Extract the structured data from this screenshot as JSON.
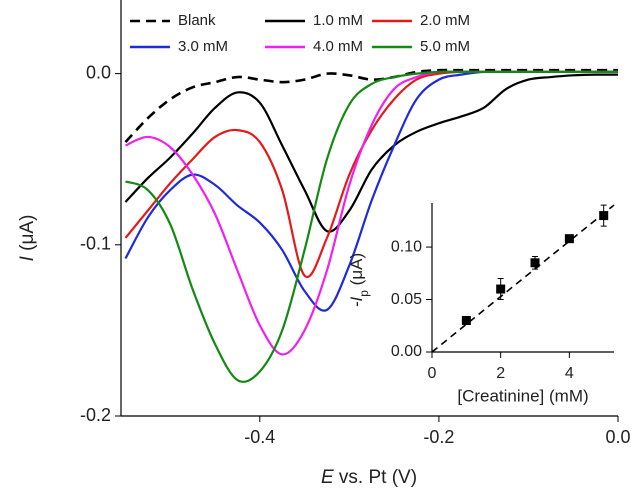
{
  "chart_data": [
    {
      "type": "line",
      "x_label": [
        "E",
        " vs. Pt (V)"
      ],
      "y_label": [
        "I",
        " (μA)"
      ],
      "x": [
        -0.55,
        -0.525,
        -0.5,
        -0.475,
        -0.45,
        -0.425,
        -0.4,
        -0.375,
        -0.35,
        -0.325,
        -0.3,
        -0.275,
        -0.25,
        -0.225,
        -0.2,
        -0.175,
        -0.15,
        -0.125,
        -0.1,
        -0.075,
        -0.05,
        -0.025,
        0.0
      ],
      "xlim": [
        -0.555,
        0.0
      ],
      "ylim": [
        -0.2,
        0.043
      ],
      "xticks": [
        -0.4,
        -0.2,
        {
          "value": 0,
          "label": "0.0"
        }
      ],
      "yticks": [
        {
          "value": 0,
          "label": "0.0"
        },
        -0.1,
        -0.2
      ],
      "series": [
        {
          "name": "Blank",
          "color": "#000000",
          "dash": true,
          "values": [
            -0.04,
            -0.026,
            -0.015,
            -0.008,
            -0.005,
            -0.002,
            -0.0035,
            -0.005,
            -0.0035,
            0,
            -0.001,
            -0.0035,
            -0.002,
            0.001,
            0.002,
            0.002,
            0.002,
            0.002,
            0.002,
            0.002,
            0.002,
            0.002,
            0.002
          ]
        },
        {
          "name": "1.0 mM",
          "color": "#000000",
          "values": [
            -0.075,
            -0.061,
            -0.049,
            -0.035,
            -0.02,
            -0.011,
            -0.017,
            -0.042,
            -0.068,
            -0.092,
            -0.08,
            -0.056,
            -0.042,
            -0.034,
            -0.029,
            -0.025,
            -0.02,
            -0.009,
            -0.0035,
            -0.002,
            -0.001,
            -0.0006,
            -0.0006
          ]
        },
        {
          "name": "2.0 mM",
          "color": "#e41a1a",
          "values": [
            -0.096,
            -0.08,
            -0.064,
            -0.05,
            -0.037,
            -0.033,
            -0.04,
            -0.068,
            -0.118,
            -0.096,
            -0.059,
            -0.033,
            -0.015,
            -0.0035,
            0,
            0.001,
            0.001,
            0.001,
            0.001,
            0.001,
            0.001,
            0.001,
            0.001
          ]
        },
        {
          "name": "3.0 mM",
          "color": "#1f2bd6",
          "values": [
            -0.108,
            -0.084,
            -0.068,
            -0.059,
            -0.065,
            -0.077,
            -0.087,
            -0.103,
            -0.127,
            -0.138,
            -0.112,
            -0.074,
            -0.042,
            -0.015,
            -0.0035,
            -0.0006,
            0.001,
            0.001,
            0.001,
            0.001,
            0.001,
            0.001,
            0.001
          ]
        },
        {
          "name": "4.0 mM",
          "color": "#f020f0",
          "values": [
            -0.042,
            -0.037,
            -0.043,
            -0.059,
            -0.082,
            -0.115,
            -0.147,
            -0.164,
            -0.15,
            -0.115,
            -0.065,
            -0.03,
            -0.009,
            -0.002,
            0.001,
            0.001,
            0.001,
            0.001,
            0.001,
            0.001,
            0.001,
            0.001,
            0.001
          ]
        },
        {
          "name": "5.0 mM",
          "color": "#138a13",
          "values": [
            -0.063,
            -0.068,
            -0.088,
            -0.126,
            -0.158,
            -0.179,
            -0.174,
            -0.15,
            -0.103,
            -0.05,
            -0.018,
            -0.006,
            -0.002,
            0,
            0.001,
            0.001,
            0.001,
            0.001,
            0.001,
            0.001,
            0.001,
            0.001,
            0.001
          ]
        }
      ]
    },
    {
      "type": "scatter",
      "x_label": "[Creatinine] (mM)",
      "y_label": [
        "-I",
        "p",
        " (μA)"
      ],
      "xlim": [
        0,
        5.3
      ],
      "ylim": [
        0,
        0.142
      ],
      "xticks": [
        0,
        2,
        4
      ],
      "yticks": [
        {
          "value": 0,
          "label": "0.00"
        },
        0.05,
        {
          "value": 0.1,
          "label": "0.10"
        }
      ],
      "x": [
        1,
        2,
        3,
        4,
        5
      ],
      "values": [
        0.03,
        0.06,
        0.085,
        0.108,
        0.13
      ],
      "errors": [
        0.002,
        0.01,
        0.006,
        0.003,
        0.01
      ],
      "color": "#000000",
      "fit": {
        "x": [
          0,
          5.3
        ],
        "values": [
          0,
          0.14
        ]
      }
    }
  ]
}
